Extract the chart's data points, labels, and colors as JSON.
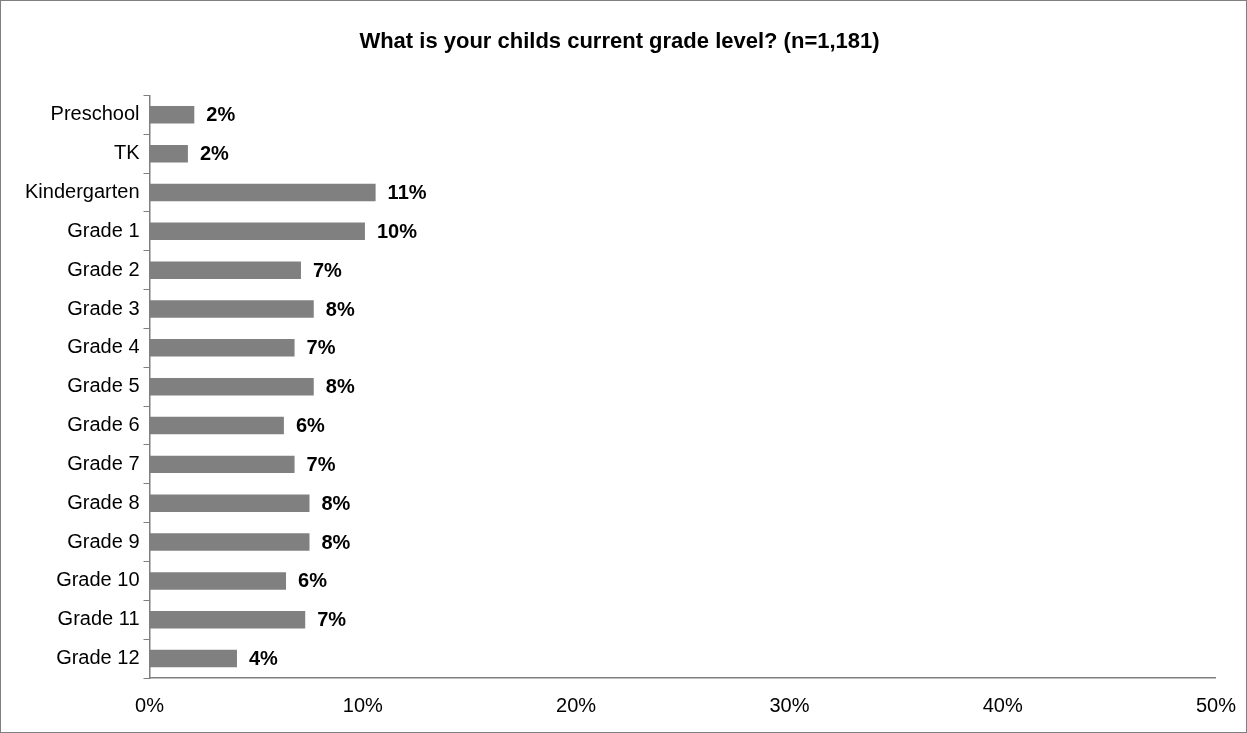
{
  "chart_data": {
    "type": "bar",
    "orientation": "horizontal",
    "title": "What is your childs current grade level? (n=1,181)",
    "categories": [
      "Preschool",
      "TK",
      "Kindergarten",
      "Grade 1",
      "Grade 2",
      "Grade 3",
      "Grade 4",
      "Grade 5",
      "Grade 6",
      "Grade 7",
      "Grade 8",
      "Grade 9",
      "Grade 10",
      "Grade 11",
      "Grade 12"
    ],
    "values": [
      2.1,
      1.8,
      10.6,
      10.1,
      7.1,
      7.7,
      6.8,
      7.7,
      6.3,
      6.8,
      7.5,
      7.5,
      6.4,
      7.3,
      4.1
    ],
    "value_labels": [
      "2%",
      "2%",
      "11%",
      "10%",
      "7%",
      "8%",
      "7%",
      "8%",
      "6%",
      "7%",
      "8%",
      "8%",
      "6%",
      "7%",
      "4%"
    ],
    "color": "#808080",
    "xlim": [
      0,
      50
    ],
    "xticks": [
      {
        "value": 0,
        "label": "0%"
      },
      {
        "value": 10,
        "label": "10%"
      },
      {
        "value": 20,
        "label": "20%"
      },
      {
        "value": 30,
        "label": "30%"
      },
      {
        "value": 40,
        "label": "40%"
      },
      {
        "value": 50,
        "label": "50%"
      }
    ],
    "grid": false,
    "legend": false
  }
}
